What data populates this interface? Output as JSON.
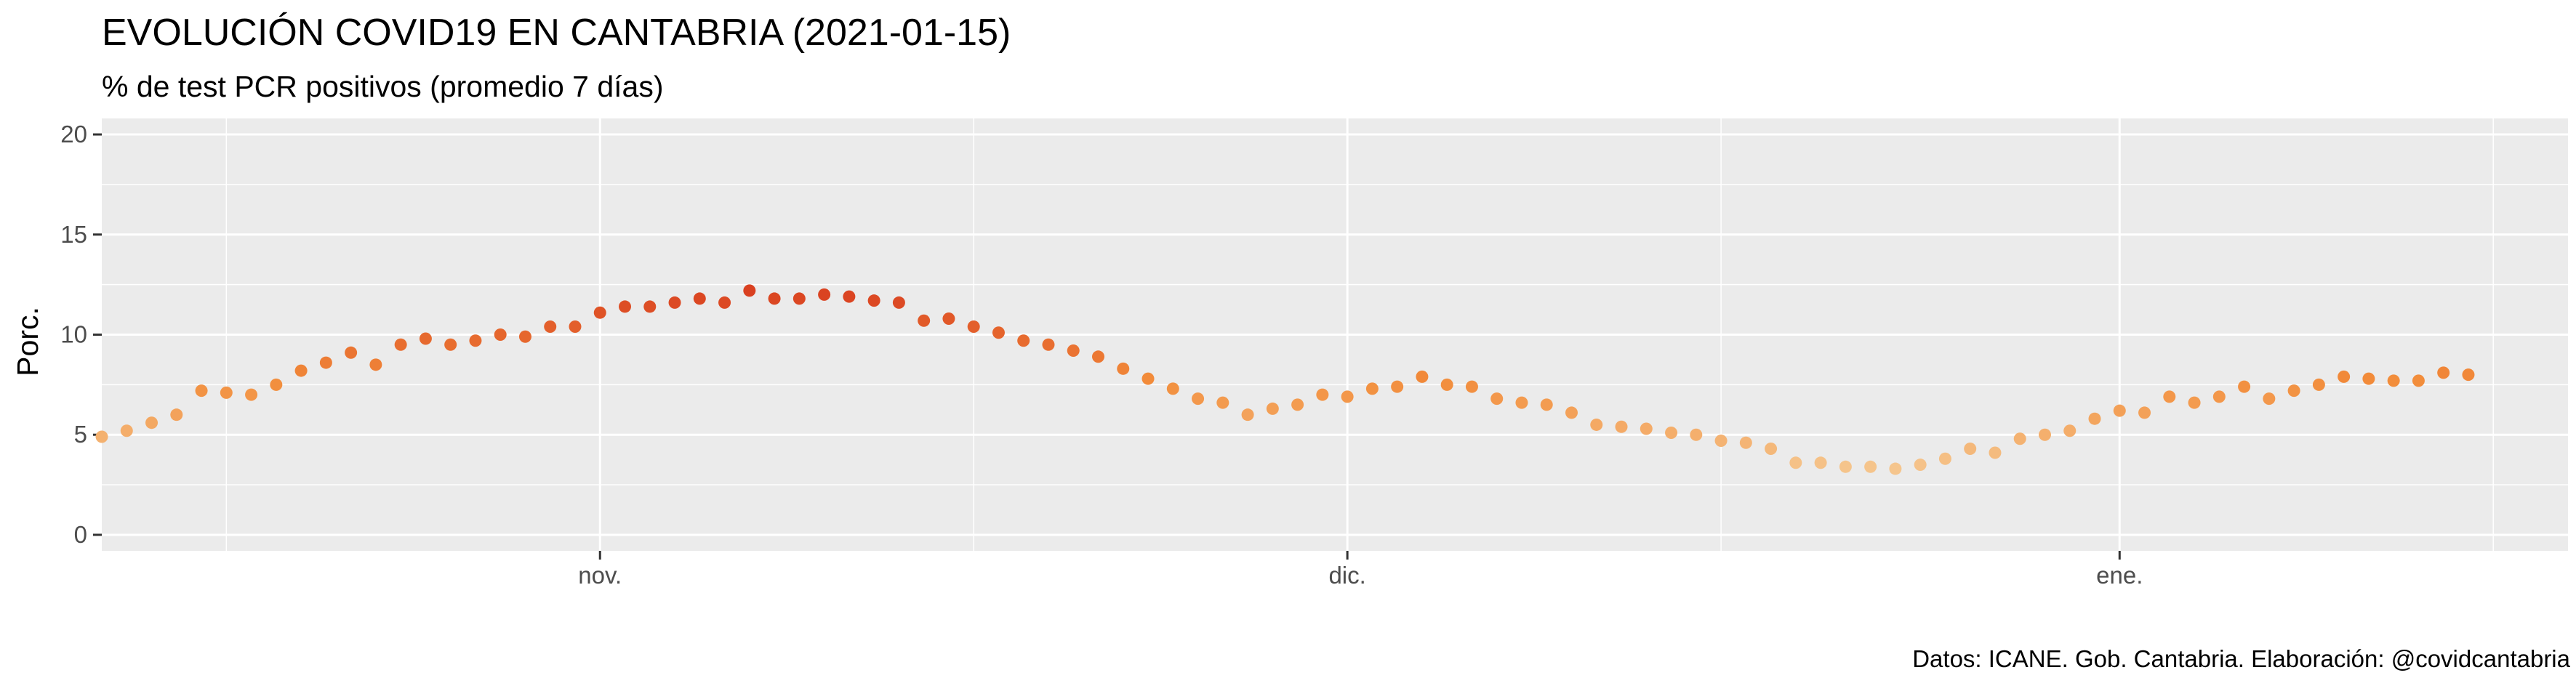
{
  "chart_data": {
    "type": "scatter",
    "title": "EVOLUCIÓN COVID19 EN CANTABRIA (2021-01-15)",
    "subtitle": "% de test PCR positivos (promedio 7 días)",
    "xlabel": "",
    "ylabel": "Porc.",
    "caption": "Datos: ICANE. Gob. Cantabria. Elaboración: @covidcantabria",
    "x_tick_labels": [
      {
        "date": "2020-11-01",
        "label": "nov."
      },
      {
        "date": "2020-12-01",
        "label": "dic."
      },
      {
        "date": "2021-01-01",
        "label": "ene."
      }
    ],
    "x_range": [
      "2020-10-12",
      "2021-01-19"
    ],
    "ylim": [
      -0.8,
      20.8
    ],
    "y_ticks": [
      0,
      5,
      10,
      15,
      20
    ],
    "grid": true,
    "color_scale": {
      "low": "#f5c58d",
      "mid": "#f28c3a",
      "high": "#d94020",
      "range": [
        3.3,
        12.2
      ]
    },
    "series": [
      {
        "x": [
          "2020-10-12",
          "2020-10-13",
          "2020-10-14",
          "2020-10-15",
          "2020-10-16",
          "2020-10-17",
          "2020-10-18",
          "2020-10-19",
          "2020-10-20",
          "2020-10-21",
          "2020-10-22",
          "2020-10-23",
          "2020-10-24",
          "2020-10-25",
          "2020-10-26",
          "2020-10-27",
          "2020-10-28",
          "2020-10-29",
          "2020-10-30",
          "2020-10-31",
          "2020-11-01",
          "2020-11-02",
          "2020-11-03",
          "2020-11-04",
          "2020-11-05",
          "2020-11-06",
          "2020-11-07",
          "2020-11-08",
          "2020-11-09",
          "2020-11-10",
          "2020-11-11",
          "2020-11-12",
          "2020-11-13",
          "2020-11-14",
          "2020-11-15",
          "2020-11-16",
          "2020-11-17",
          "2020-11-18",
          "2020-11-19",
          "2020-11-20",
          "2020-11-21",
          "2020-11-22",
          "2020-11-23",
          "2020-11-24",
          "2020-11-25",
          "2020-11-26",
          "2020-11-27",
          "2020-11-28",
          "2020-11-29",
          "2020-11-30",
          "2020-12-01",
          "2020-12-02",
          "2020-12-03",
          "2020-12-04",
          "2020-12-05",
          "2020-12-06",
          "2020-12-07",
          "2020-12-08",
          "2020-12-09",
          "2020-12-10",
          "2020-12-11",
          "2020-12-12",
          "2020-12-13",
          "2020-12-14",
          "2020-12-15",
          "2020-12-16",
          "2020-12-17",
          "2020-12-18",
          "2020-12-19",
          "2020-12-20",
          "2020-12-21",
          "2020-12-22",
          "2020-12-23",
          "2020-12-24",
          "2020-12-25",
          "2020-12-26",
          "2020-12-27",
          "2020-12-28",
          "2020-12-29",
          "2020-12-30",
          "2020-12-31",
          "2021-01-01",
          "2021-01-02",
          "2021-01-03",
          "2021-01-04",
          "2021-01-05",
          "2021-01-06",
          "2021-01-07",
          "2021-01-08",
          "2021-01-09",
          "2021-01-10",
          "2021-01-11",
          "2021-01-12",
          "2021-01-13",
          "2021-01-14",
          "2021-01-15"
        ],
        "y": [
          4.9,
          5.2,
          5.6,
          6.0,
          7.2,
          7.1,
          7.0,
          7.5,
          8.2,
          8.6,
          9.1,
          8.5,
          9.5,
          9.8,
          9.5,
          9.7,
          10.0,
          9.9,
          10.4,
          10.4,
          11.1,
          11.4,
          11.4,
          11.6,
          11.8,
          11.6,
          12.2,
          11.8,
          11.8,
          12.0,
          11.9,
          11.7,
          11.6,
          10.7,
          10.8,
          10.4,
          10.1,
          9.7,
          9.5,
          9.2,
          8.9,
          8.3,
          7.8,
          7.3,
          6.8,
          6.6,
          6.0,
          6.3,
          6.5,
          7.0,
          6.9,
          7.3,
          7.4,
          7.9,
          7.5,
          7.4,
          6.8,
          6.6,
          6.5,
          6.1,
          5.5,
          5.4,
          5.3,
          5.1,
          5.0,
          4.7,
          4.6,
          4.3,
          3.6,
          3.6,
          3.4,
          3.4,
          3.3,
          3.5,
          3.8,
          4.3,
          4.1,
          4.8,
          5.0,
          5.2,
          5.8,
          6.2,
          6.1,
          6.9,
          6.6,
          6.9,
          7.4,
          6.8,
          7.2,
          7.5,
          7.9,
          7.8,
          7.7,
          7.7,
          8.1,
          8.0
        ]
      }
    ]
  }
}
